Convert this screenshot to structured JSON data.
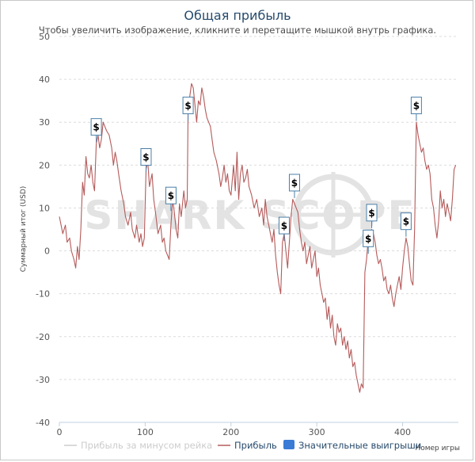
{
  "chart_data": {
    "type": "line",
    "title": "Общая прибыль",
    "subtitle": "Чтобы увеличить изображение, кликните и перетащите мышкой внутрь графика.",
    "ylabel": "Суммарный итог (USD)",
    "xlabel": "Номер игры",
    "xlim": [
      0,
      465
    ],
    "ylim": [
      -40,
      50
    ],
    "x_ticks": [
      0,
      100,
      200,
      300,
      400
    ],
    "y_ticks": [
      -40,
      -30,
      -20,
      -10,
      0,
      10,
      20,
      30,
      40,
      50
    ],
    "grid": "horizontal",
    "legend_position": "bottom-center",
    "watermark": "SHARK SCOPE",
    "series": [
      {
        "name": "Прибыль за минусом рейка",
        "color": "#cccccc",
        "visible": false,
        "points": []
      },
      {
        "name": "Прибыль",
        "color": "#b55a5a",
        "points": [
          [
            0,
            8
          ],
          [
            4,
            4
          ],
          [
            7,
            6
          ],
          [
            9,
            2
          ],
          [
            12,
            3
          ],
          [
            14,
            0
          ],
          [
            17,
            -2
          ],
          [
            19,
            -4
          ],
          [
            21,
            1
          ],
          [
            23,
            -2
          ],
          [
            25,
            5
          ],
          [
            27,
            16
          ],
          [
            29,
            13
          ],
          [
            31,
            22
          ],
          [
            33,
            18
          ],
          [
            35,
            17
          ],
          [
            37,
            20
          ],
          [
            39,
            16
          ],
          [
            41,
            14
          ],
          [
            43,
            25
          ],
          [
            45,
            27
          ],
          [
            47,
            24
          ],
          [
            49,
            26
          ],
          [
            51,
            30
          ],
          [
            53,
            29
          ],
          [
            55,
            28
          ],
          [
            58,
            27
          ],
          [
            61,
            24
          ],
          [
            63,
            20
          ],
          [
            65,
            23
          ],
          [
            67,
            21
          ],
          [
            69,
            18
          ],
          [
            72,
            14
          ],
          [
            75,
            11
          ],
          [
            77,
            8
          ],
          [
            80,
            6
          ],
          [
            83,
            9
          ],
          [
            85,
            5
          ],
          [
            88,
            3
          ],
          [
            90,
            6
          ],
          [
            93,
            2
          ],
          [
            95,
            4
          ],
          [
            97,
            1
          ],
          [
            99,
            3
          ],
          [
            101,
            19
          ],
          [
            103,
            21
          ],
          [
            105,
            15
          ],
          [
            108,
            18
          ],
          [
            110,
            12
          ],
          [
            112,
            9
          ],
          [
            115,
            4
          ],
          [
            118,
            6
          ],
          [
            120,
            2
          ],
          [
            122,
            3
          ],
          [
            124,
            0
          ],
          [
            126,
            -1
          ],
          [
            128,
            -2
          ],
          [
            130,
            6
          ],
          [
            132,
            12
          ],
          [
            134,
            9
          ],
          [
            136,
            5
          ],
          [
            138,
            3
          ],
          [
            140,
            11
          ],
          [
            142,
            8
          ],
          [
            145,
            14
          ],
          [
            147,
            10
          ],
          [
            149,
            12
          ],
          [
            150,
            33
          ],
          [
            152,
            36
          ],
          [
            154,
            39
          ],
          [
            156,
            38
          ],
          [
            158,
            34
          ],
          [
            160,
            30
          ],
          [
            162,
            35
          ],
          [
            164,
            34
          ],
          [
            166,
            38
          ],
          [
            168,
            36
          ],
          [
            170,
            33
          ],
          [
            172,
            31
          ],
          [
            174,
            30
          ],
          [
            176,
            29
          ],
          [
            178,
            26
          ],
          [
            180,
            23
          ],
          [
            183,
            21
          ],
          [
            186,
            18
          ],
          [
            188,
            15
          ],
          [
            190,
            17
          ],
          [
            192,
            20
          ],
          [
            194,
            16
          ],
          [
            196,
            18
          ],
          [
            198,
            14
          ],
          [
            200,
            13
          ],
          [
            203,
            20
          ],
          [
            205,
            14
          ],
          [
            207,
            23
          ],
          [
            209,
            12
          ],
          [
            211,
            18
          ],
          [
            213,
            20
          ],
          [
            215,
            16
          ],
          [
            217,
            17
          ],
          [
            219,
            19
          ],
          [
            221,
            15
          ],
          [
            224,
            13
          ],
          [
            227,
            10
          ],
          [
            230,
            12
          ],
          [
            233,
            8
          ],
          [
            236,
            10
          ],
          [
            238,
            6
          ],
          [
            240,
            12
          ],
          [
            242,
            8
          ],
          [
            244,
            6
          ],
          [
            246,
            4
          ],
          [
            248,
            2
          ],
          [
            250,
            5
          ],
          [
            252,
            -1
          ],
          [
            254,
            -5
          ],
          [
            256,
            -8
          ],
          [
            258,
            -10
          ],
          [
            260,
            2
          ],
          [
            262,
            4
          ],
          [
            264,
            0
          ],
          [
            266,
            -4
          ],
          [
            268,
            2
          ],
          [
            270,
            8
          ],
          [
            272,
            12
          ],
          [
            274,
            11
          ],
          [
            276,
            10
          ],
          [
            278,
            9
          ],
          [
            280,
            5
          ],
          [
            282,
            2
          ],
          [
            284,
            0
          ],
          [
            286,
            2
          ],
          [
            288,
            -3
          ],
          [
            290,
            -1
          ],
          [
            292,
            1
          ],
          [
            294,
            -4
          ],
          [
            296,
            -2
          ],
          [
            298,
            0
          ],
          [
            300,
            -6
          ],
          [
            302,
            -4
          ],
          [
            304,
            -8
          ],
          [
            306,
            -10
          ],
          [
            308,
            -12
          ],
          [
            310,
            -11
          ],
          [
            312,
            -16
          ],
          [
            314,
            -13
          ],
          [
            316,
            -18
          ],
          [
            318,
            -15
          ],
          [
            320,
            -20
          ],
          [
            322,
            -22
          ],
          [
            324,
            -17
          ],
          [
            326,
            -19
          ],
          [
            328,
            -18
          ],
          [
            330,
            -22
          ],
          [
            332,
            -20
          ],
          [
            334,
            -23
          ],
          [
            336,
            -21
          ],
          [
            338,
            -25
          ],
          [
            340,
            -23
          ],
          [
            342,
            -27
          ],
          [
            344,
            -26
          ],
          [
            346,
            -29
          ],
          [
            348,
            -31
          ],
          [
            350,
            -33
          ],
          [
            352,
            -31
          ],
          [
            354,
            -32
          ],
          [
            356,
            -5
          ],
          [
            358,
            -2
          ],
          [
            360,
            3
          ],
          [
            362,
            1
          ],
          [
            364,
            5
          ],
          [
            366,
            4
          ],
          [
            368,
            2
          ],
          [
            370,
            -1
          ],
          [
            372,
            -3
          ],
          [
            374,
            -2
          ],
          [
            376,
            -4
          ],
          [
            378,
            -7
          ],
          [
            380,
            -6
          ],
          [
            382,
            -9
          ],
          [
            384,
            -10
          ],
          [
            386,
            -8
          ],
          [
            388,
            -11
          ],
          [
            390,
            -13
          ],
          [
            392,
            -10
          ],
          [
            394,
            -8
          ],
          [
            396,
            -6
          ],
          [
            398,
            -9
          ],
          [
            400,
            -4
          ],
          [
            402,
            0
          ],
          [
            404,
            3
          ],
          [
            406,
            1
          ],
          [
            408,
            -3
          ],
          [
            410,
            -7
          ],
          [
            412,
            -8
          ],
          [
            414,
            5
          ],
          [
            416,
            30
          ],
          [
            418,
            27
          ],
          [
            420,
            25
          ],
          [
            422,
            23
          ],
          [
            424,
            24
          ],
          [
            426,
            21
          ],
          [
            428,
            19
          ],
          [
            430,
            20
          ],
          [
            432,
            18
          ],
          [
            434,
            12
          ],
          [
            436,
            10
          ],
          [
            438,
            6
          ],
          [
            440,
            3
          ],
          [
            442,
            7
          ],
          [
            444,
            14
          ],
          [
            446,
            10
          ],
          [
            448,
            12
          ],
          [
            450,
            8
          ],
          [
            452,
            11
          ],
          [
            454,
            9
          ],
          [
            456,
            7
          ],
          [
            458,
            12
          ],
          [
            460,
            19
          ],
          [
            462,
            20
          ]
        ]
      },
      {
        "name": "Значительные выигрыши",
        "color": "#3a7bd5",
        "marker_label": "$",
        "points": [
          [
            43,
            29
          ],
          [
            101,
            22
          ],
          [
            130,
            13
          ],
          [
            150,
            34
          ],
          [
            262,
            6
          ],
          [
            274,
            16
          ],
          [
            360,
            3
          ],
          [
            364,
            9
          ],
          [
            404,
            7
          ],
          [
            416,
            34
          ]
        ]
      }
    ]
  }
}
